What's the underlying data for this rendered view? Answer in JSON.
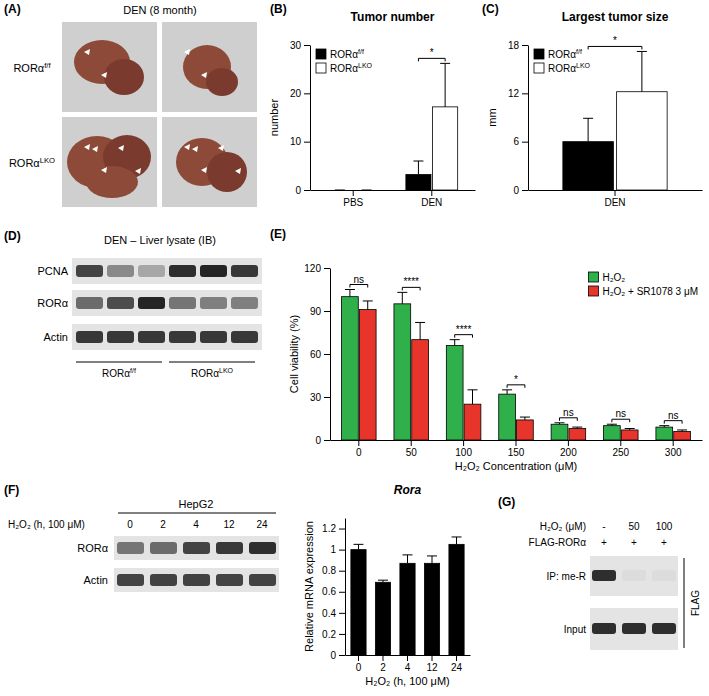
{
  "panel_labels": [
    "(A)",
    "(B)",
    "(C)",
    "(D)",
    "(E)",
    "(F)",
    "(G)"
  ],
  "panel_A": {
    "title": "DEN (8 month)",
    "rows": [
      "RORαf/f",
      "RORαLKO"
    ]
  },
  "panel_D": {
    "title": "DEN – Liver lysate (IB)",
    "bands": [
      "PCNA",
      "RORα",
      "Actin"
    ],
    "groups": [
      "RORαf/f",
      "RORαLKO"
    ]
  },
  "panel_F_blot": {
    "title": "HepG2",
    "condition": "H₂O₂ (h, 100 μM)",
    "lanes": [
      0,
      2,
      4,
      12,
      24
    ],
    "bands": [
      "RORα",
      "Actin"
    ]
  },
  "panel_G": {
    "rows": [
      {
        "label": "H₂O₂ (μM)",
        "lanes": [
          "-",
          "50",
          "100"
        ]
      },
      {
        "label": "FLAG-RORα",
        "lanes": [
          "+",
          "+",
          "+"
        ]
      }
    ],
    "bands": [
      "IP: me-R",
      "Input"
    ],
    "antibody": "FLAG"
  },
  "chart_data": [
    {
      "type": "bar",
      "title": "Tumor number",
      "y_label": "number",
      "categories": [
        "PBS",
        "DEN"
      ],
      "series": [
        {
          "name": "RORαf/f",
          "color": "#000000",
          "values": [
            0,
            3.2
          ],
          "errors": [
            0,
            2.8
          ]
        },
        {
          "name": "RORαLKO",
          "color": "#ffffff",
          "values": [
            0,
            17.2
          ],
          "errors": [
            0,
            9
          ]
        }
      ],
      "ylim": [
        0,
        30
      ],
      "yticks": [
        0,
        10,
        20,
        30
      ],
      "legend": "upper left",
      "annotations": [
        null,
        "*"
      ]
    },
    {
      "type": "bar",
      "title": "Largest tumor size",
      "y_label": "mm",
      "categories": [
        "DEN"
      ],
      "series": [
        {
          "name": "RORαf/f",
          "color": "#000000",
          "values": [
            6
          ],
          "errors": [
            2.9
          ]
        },
        {
          "name": "RORαLKO",
          "color": "#ffffff",
          "values": [
            12.2
          ],
          "errors": [
            5
          ]
        }
      ],
      "ylim": [
        0,
        18
      ],
      "yticks": [
        0,
        6,
        12,
        18
      ],
      "legend": "upper left",
      "annotations": [
        "*"
      ]
    },
    {
      "type": "bar",
      "y_label": "Cell viability (%)",
      "x_label": "H₂O₂ Concentration (μM)",
      "categories": [
        "0",
        "50",
        "100",
        "150",
        "200",
        "250",
        "300"
      ],
      "series": [
        {
          "name": "H₂O₂",
          "color": "#2fb04a",
          "values": [
            100,
            95,
            66,
            32,
            11,
            10,
            9
          ],
          "errors": [
            5,
            8,
            4,
            3,
            1,
            1,
            1
          ]
        },
        {
          "name": "H₂O₂ + SR1078 3 μM",
          "color": "#e8352c",
          "values": [
            91,
            70,
            25,
            14,
            8,
            7,
            6
          ],
          "errors": [
            6,
            12,
            10,
            2,
            1,
            1,
            1
          ]
        }
      ],
      "ylim": [
        0,
        120
      ],
      "yticks": [
        0,
        30,
        60,
        90,
        120
      ],
      "legend": "upper right",
      "annotations": [
        "ns",
        "****",
        "****",
        "*",
        "ns",
        "ns",
        "ns"
      ]
    },
    {
      "type": "bar",
      "title": "Rora",
      "y_label": "Relative mRNA expression",
      "x_label": "H₂O₂ (h, 100 μM)",
      "categories": [
        "0",
        "2",
        "4",
        "12",
        "24"
      ],
      "values": [
        1,
        0.69,
        0.87,
        0.87,
        1.05
      ],
      "errors": [
        0.05,
        0.02,
        0.08,
        0.07,
        0.07
      ],
      "color": "#000000",
      "ylim": [
        0,
        1.3
      ],
      "yticks": [
        0,
        0.2,
        0.4,
        0.6,
        0.8,
        1,
        1.2
      ]
    }
  ]
}
